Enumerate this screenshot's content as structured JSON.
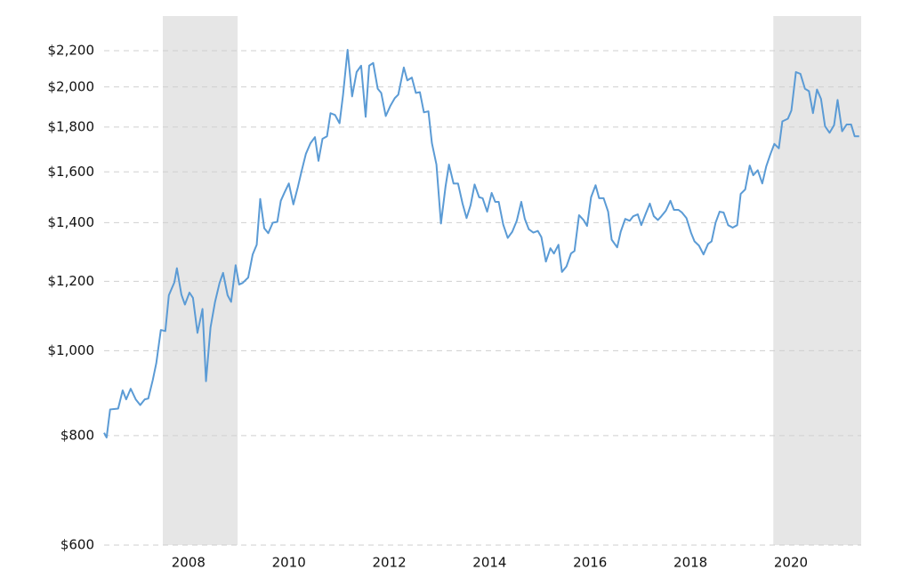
{
  "chart_data": {
    "type": "line",
    "y_scale": "log",
    "grid": true,
    "color": "#5b9bd5",
    "shade_color": "#e6e6e6",
    "shaded_ranges": [
      [
        2007.49,
        2008.98
      ],
      [
        2019.65,
        2021.4
      ]
    ],
    "xlim": [
      2006.32,
      2021.4
    ],
    "xticks": [
      2008,
      2010,
      2012,
      2014,
      2016,
      2018,
      2020
    ],
    "ylim": [
      600,
      2410
    ],
    "yticks": [
      {
        "value": 600,
        "label": "$600"
      },
      {
        "value": 800,
        "label": "$800"
      },
      {
        "value": 1000,
        "label": "$1,000"
      },
      {
        "value": 1200,
        "label": "$1,200"
      },
      {
        "value": 1400,
        "label": "$1,400"
      },
      {
        "value": 1600,
        "label": "$1,600"
      },
      {
        "value": 1800,
        "label": "$1,800"
      },
      {
        "value": 2000,
        "label": "$2,000"
      },
      {
        "value": 2200,
        "label": "$2,200"
      }
    ],
    "x": [
      2006.32,
      2006.37,
      2006.44,
      2006.6,
      2006.69,
      2006.76,
      2006.85,
      2006.95,
      2007.04,
      2007.13,
      2007.2,
      2007.29,
      2007.36,
      2007.45,
      2007.54,
      2007.61,
      2007.72,
      2007.77,
      2007.86,
      2007.93,
      2008.02,
      2008.09,
      2008.18,
      2008.28,
      2008.35,
      2008.44,
      2008.53,
      2008.62,
      2008.69,
      2008.78,
      2008.85,
      2008.94,
      2009.01,
      2009.08,
      2009.19,
      2009.28,
      2009.36,
      2009.43,
      2009.51,
      2009.59,
      2009.68,
      2009.77,
      2009.84,
      2009.91,
      2010.0,
      2010.09,
      2010.18,
      2010.25,
      2010.34,
      2010.43,
      2010.52,
      2010.59,
      2010.67,
      2010.76,
      2010.83,
      2010.92,
      2011.01,
      2011.08,
      2011.17,
      2011.26,
      2011.35,
      2011.44,
      2011.53,
      2011.6,
      2011.68,
      2011.77,
      2011.84,
      2011.93,
      2012.02,
      2012.11,
      2012.18,
      2012.29,
      2012.36,
      2012.45,
      2012.53,
      2012.61,
      2012.69,
      2012.78,
      2012.85,
      2012.94,
      2013.03,
      2013.12,
      2013.19,
      2013.28,
      2013.37,
      2013.46,
      2013.54,
      2013.62,
      2013.7,
      2013.79,
      2013.86,
      2013.95,
      2014.04,
      2014.11,
      2014.18,
      2014.27,
      2014.36,
      2014.45,
      2014.54,
      2014.63,
      2014.7,
      2014.78,
      2014.87,
      2014.96,
      2015.03,
      2015.12,
      2015.21,
      2015.28,
      2015.37,
      2015.44,
      2015.53,
      2015.62,
      2015.69,
      2015.78,
      2015.87,
      2015.94,
      2016.02,
      2016.11,
      2016.18,
      2016.27,
      2016.36,
      2016.43,
      2016.54,
      2016.61,
      2016.7,
      2016.79,
      2016.86,
      2016.95,
      2017.02,
      2017.11,
      2017.19,
      2017.27,
      2017.35,
      2017.42,
      2017.51,
      2017.6,
      2017.67,
      2017.76,
      2017.83,
      2017.92,
      2018.01,
      2018.08,
      2018.17,
      2018.26,
      2018.35,
      2018.42,
      2018.5,
      2018.58,
      2018.66,
      2018.75,
      2018.84,
      2018.93,
      2019.0,
      2019.09,
      2019.18,
      2019.25,
      2019.34,
      2019.43,
      2019.51,
      2019.59,
      2019.67,
      2019.76,
      2019.83,
      2019.94,
      2020.01,
      2020.1,
      2020.19,
      2020.28,
      2020.36,
      2020.44,
      2020.52,
      2020.6,
      2020.68,
      2020.77,
      2020.86,
      2020.93,
      2021.02,
      2021.11,
      2021.2,
      2021.27,
      2021.36
    ],
    "values": [
      806,
      796,
      857,
      859,
      901,
      880,
      905,
      880,
      867,
      880,
      882,
      926,
      968,
      1056,
      1053,
      1157,
      1197,
      1242,
      1159,
      1129,
      1165,
      1149,
      1048,
      1116,
      923,
      1063,
      1137,
      1195,
      1227,
      1157,
      1137,
      1252,
      1190,
      1195,
      1212,
      1288,
      1321,
      1490,
      1380,
      1362,
      1400,
      1403,
      1483,
      1514,
      1552,
      1469,
      1538,
      1600,
      1678,
      1725,
      1753,
      1647,
      1745,
      1757,
      1867,
      1858,
      1818,
      1960,
      2205,
      1951,
      2080,
      2115,
      1849,
      2115,
      2130,
      1991,
      1969,
      1853,
      1902,
      1942,
      1960,
      2105,
      2035,
      2050,
      1969,
      1973,
      1871,
      1876,
      1725,
      1631,
      1397,
      1538,
      1631,
      1552,
      1552,
      1472,
      1417,
      1466,
      1548,
      1497,
      1493,
      1441,
      1514,
      1479,
      1479,
      1393,
      1345,
      1367,
      1407,
      1479,
      1414,
      1376,
      1364,
      1370,
      1348,
      1264,
      1309,
      1291,
      1321,
      1230,
      1248,
      1291,
      1300,
      1428,
      1410,
      1388,
      1497,
      1545,
      1493,
      1493,
      1441,
      1339,
      1312,
      1367,
      1414,
      1407,
      1424,
      1431,
      1391,
      1434,
      1472,
      1424,
      1410,
      1424,
      1445,
      1483,
      1448,
      1448,
      1438,
      1417,
      1364,
      1333,
      1318,
      1288,
      1324,
      1333,
      1400,
      1441,
      1438,
      1391,
      1382,
      1391,
      1510,
      1528,
      1627,
      1586,
      1607,
      1552,
      1624,
      1675,
      1722,
      1702,
      1827,
      1840,
      1880,
      2080,
      2070,
      1991,
      1978,
      1867,
      1987,
      1938,
      1804,
      1773,
      1809,
      1933,
      1780,
      1812,
      1812,
      1757,
      1757
    ]
  }
}
